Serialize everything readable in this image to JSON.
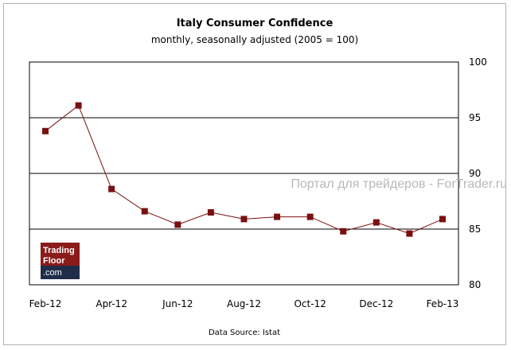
{
  "chart_data": {
    "type": "line",
    "title": "Italy Consumer Confidence",
    "subtitle": "monthly, seasonally adjusted (2005 = 100)",
    "x": [
      "Feb-12",
      "Mar-12",
      "Apr-12",
      "May-12",
      "Jun-12",
      "Jul-12",
      "Aug-12",
      "Sep-12",
      "Oct-12",
      "Nov-12",
      "Dec-12",
      "Jan-13",
      "Feb-13"
    ],
    "x_tick_labels": [
      "Feb-12",
      "Apr-12",
      "Jun-12",
      "Aug-12",
      "Oct-12",
      "Dec-12",
      "Feb-13"
    ],
    "series": [
      {
        "values": [
          93.8,
          96.1,
          88.6,
          86.6,
          85.4,
          86.5,
          85.9,
          86.1,
          86.1,
          84.8,
          85.6,
          84.6,
          85.9
        ]
      }
    ],
    "ylim": [
      80,
      100
    ],
    "y_ticks": [
      80,
      85,
      90,
      95,
      100
    ],
    "y_axis_side": "right",
    "gridlines": [
      85,
      90,
      95
    ],
    "source": "Data Source: Istat",
    "colors": {
      "line": "#7a1010",
      "marker": "#7a1010",
      "grid": "#000000"
    }
  },
  "logo": {
    "line1": "Trading",
    "line2": "Floor",
    "line3": ".com",
    "top_color": "#8b1a1a",
    "bottom_color": "#1f2d4a"
  },
  "watermark": "Портал для трейдеров - ForTrader.ru"
}
